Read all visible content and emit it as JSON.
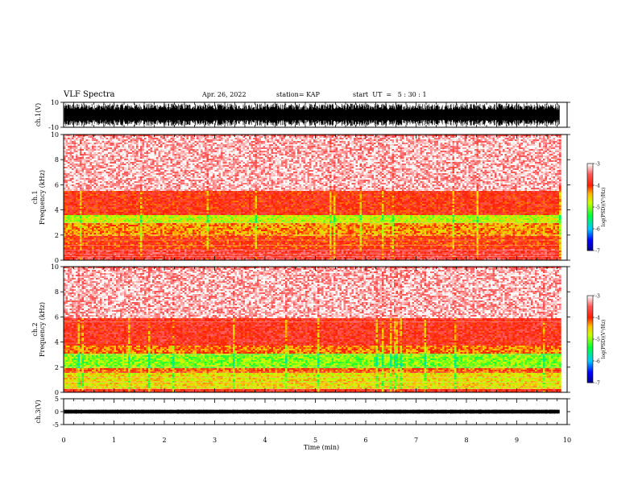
{
  "header": {
    "title": "VLF Spectra",
    "date": "Apr. 26, 2022",
    "station": "station= KAP",
    "start": "start  UT  =   5 : 30 : 1"
  },
  "chart_data": [
    {
      "type": "line",
      "panel": "ch1-waveform",
      "ylabel": "ch.1(V)",
      "ylim": [
        -10,
        10
      ],
      "yticks": [
        "10",
        "-10"
      ],
      "xlim": [
        0,
        10
      ],
      "description_values": {
        "mean_v": 0,
        "typical_range_v": [
          -9,
          9
        ]
      },
      "color": "#000000"
    },
    {
      "type": "heatmap",
      "panel": "ch1-spectrogram",
      "ylabel": "ch.1\nFrequency (kHz)",
      "ylim": [
        0,
        10
      ],
      "yticks": [
        "0",
        "2",
        "4",
        "6",
        "8",
        "10"
      ],
      "xlim": [
        0,
        10
      ],
      "colorbar": {
        "label": "log(PSD)(V²/Hz)",
        "ticks": [
          "-3",
          "-4",
          "-5",
          "-6",
          "-7"
        ],
        "range": [
          -7,
          -3
        ]
      },
      "bands": [
        {
          "f_khz": [
            0,
            0.2
          ],
          "level": -3.6
        },
        {
          "f_khz": [
            0.2,
            1.0
          ],
          "level": -3.7
        },
        {
          "f_khz": [
            1.0,
            2.0
          ],
          "level": -4.0
        },
        {
          "f_khz": [
            2.0,
            3.0
          ],
          "level": -4.3
        },
        {
          "f_khz": [
            3.0,
            3.6
          ],
          "level": -4.8
        },
        {
          "f_khz": [
            3.6,
            5.6
          ],
          "level": -3.9
        },
        {
          "f_khz": [
            5.6,
            10.0
          ],
          "level": -3.2
        }
      ]
    },
    {
      "type": "heatmap",
      "panel": "ch2-spectrogram",
      "ylabel": "ch.2\nFrequency (kHz)",
      "ylim": [
        0,
        10
      ],
      "yticks": [
        "0",
        "2",
        "4",
        "6",
        "8",
        "10"
      ],
      "xlim": [
        0,
        10
      ],
      "colorbar": {
        "label": "log(PSD)(V²/Hz)",
        "ticks": [
          "-3",
          "-4",
          "-5",
          "-6",
          "-7"
        ],
        "range": [
          -7,
          -3
        ]
      },
      "bands": [
        {
          "f_khz": [
            0,
            0.3
          ],
          "level": -3.8
        },
        {
          "f_khz": [
            0.3,
            1.6
          ],
          "level": -4.6
        },
        {
          "f_khz": [
            1.6,
            2.0
          ],
          "level": -4.1
        },
        {
          "f_khz": [
            2.0,
            3.2
          ],
          "level": -5.0
        },
        {
          "f_khz": [
            3.2,
            3.8
          ],
          "level": -4.2
        },
        {
          "f_khz": [
            3.8,
            6.0
          ],
          "level": -3.8
        },
        {
          "f_khz": [
            6.0,
            10.0
          ],
          "level": -3.2
        }
      ]
    },
    {
      "type": "line",
      "panel": "ch3-waveform",
      "ylabel": "ch.3(V)",
      "ylim": [
        -5,
        5
      ],
      "yticks": [
        "5",
        "0",
        "-5"
      ],
      "xlim": [
        0,
        10
      ],
      "description_values": {
        "mean_v": 0,
        "typical_range_v": [
          -0.8,
          0.8
        ]
      },
      "color": "#000000"
    }
  ],
  "xaxis": {
    "label": "Time (min)",
    "ticks": [
      "0",
      "1",
      "2",
      "3",
      "4",
      "5",
      "6",
      "7",
      "8",
      "9",
      "10"
    ],
    "data_end_min": 9.85
  }
}
